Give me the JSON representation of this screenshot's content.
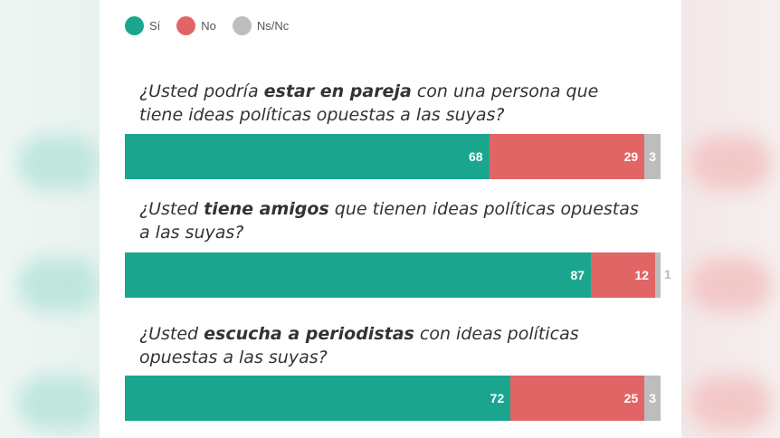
{
  "colors": {
    "si": "#1aa68e",
    "no": "#e26565",
    "nsnc": "#bdbdbd"
  },
  "legend": [
    {
      "label": "Sí",
      "color": "#1aa68e"
    },
    {
      "label": "No",
      "color": "#e26565"
    },
    {
      "label": "Ns/Nc",
      "color": "#bdbdbd"
    }
  ],
  "chart_data": {
    "type": "bar",
    "orientation": "horizontal",
    "stacked": true,
    "categories": [
      "¿Usted podría estar en pareja con una persona que tiene ideas políticas opuestas a las suyas?",
      "¿Usted tiene amigos que tienen ideas políticas opuestas a las suyas?",
      "¿Usted escucha a periodistas con ideas políticas opuestas a las suyas?"
    ],
    "series": [
      {
        "name": "Sí",
        "values": [
          68,
          87,
          72
        ]
      },
      {
        "name": "No",
        "values": [
          29,
          12,
          25
        ]
      },
      {
        "name": "Ns/Nc",
        "values": [
          3,
          1,
          3
        ]
      }
    ],
    "xlim": [
      0,
      100
    ],
    "grid": false,
    "legend_position": "top-left"
  },
  "questions": [
    {
      "pre": "¿Usted podría ",
      "bold": "estar en pareja",
      "post": " con una persona que tiene ideas políticas opuestas a las suyas?"
    },
    {
      "pre": "¿Usted ",
      "bold": "tiene amigos",
      "post": " que tienen ideas políticas opuestas a las suyas?"
    },
    {
      "pre": "¿Usted ",
      "bold": "escucha a periodistas",
      "post": " con ideas políticas opuestas a las suyas?"
    }
  ],
  "value_labels": [
    [
      "68",
      "29",
      "3"
    ],
    [
      "87",
      "12",
      "1"
    ],
    [
      "72",
      "25",
      "3"
    ]
  ]
}
